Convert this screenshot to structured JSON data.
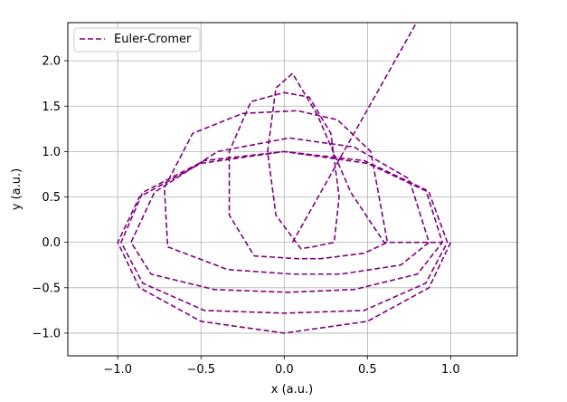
{
  "chart_data": {
    "type": "line",
    "title": "",
    "xlabel": "x (a.u.)",
    "ylabel": "y (a.u.)",
    "xlim": [
      -1.3,
      1.4
    ],
    "ylim": [
      -1.25,
      2.42
    ],
    "xticks": [
      -1.0,
      -0.5,
      0.0,
      0.5,
      1.0
    ],
    "xtick_labels": [
      "−1.0",
      "−0.5",
      "0.0",
      "0.5",
      "1.0"
    ],
    "yticks": [
      -1.0,
      -0.5,
      0.0,
      0.5,
      1.0,
      1.5,
      2.0
    ],
    "ytick_labels": [
      "−1.0",
      "−0.5",
      "0.0",
      "0.5",
      "1.0",
      "1.5",
      "2.0"
    ],
    "grid": true,
    "legend_position": "upper-left",
    "series": [
      {
        "name": "Euler-Cromer",
        "color": "#800080",
        "linestyle": "dashed",
        "x": [
          1.0,
          0.87,
          0.5,
          0.0,
          -0.5,
          -0.87,
          -1.0,
          -0.87,
          -0.5,
          0.0,
          0.5,
          0.87,
          0.98,
          0.85,
          0.48,
          0.0,
          -0.48,
          -0.85,
          -0.98,
          -0.85,
          -0.48,
          0.0,
          0.48,
          0.85,
          0.95,
          0.8,
          0.42,
          0.02,
          -0.42,
          -0.8,
          -0.92,
          -0.78,
          -0.4,
          0.03,
          0.42,
          0.75,
          0.87,
          0.7,
          0.34,
          0.05,
          -0.34,
          -0.7,
          -0.72,
          -0.55,
          -0.25,
          0.08,
          0.32,
          0.52,
          0.62,
          0.48,
          0.22,
          0.08,
          -0.18,
          -0.33,
          -0.33,
          -0.2,
          0.0,
          0.15,
          0.28,
          0.33,
          0.3,
          0.17,
          0.1,
          -0.05,
          -0.1,
          -0.05,
          0.05,
          0.2,
          0.4,
          0.6,
          0.8,
          0.95
        ],
        "y": [
          0.0,
          -0.5,
          -0.87,
          -1.0,
          -0.87,
          -0.5,
          0.0,
          0.5,
          0.87,
          1.0,
          0.87,
          0.55,
          0.0,
          -0.45,
          -0.75,
          -0.78,
          -0.75,
          -0.45,
          0.0,
          0.55,
          0.9,
          1.0,
          0.9,
          0.58,
          0.0,
          -0.35,
          -0.52,
          -0.55,
          -0.52,
          -0.35,
          0.0,
          0.55,
          1.0,
          1.15,
          1.05,
          0.7,
          0.0,
          -0.25,
          -0.35,
          -0.35,
          -0.3,
          -0.05,
          0.6,
          1.2,
          1.42,
          1.45,
          1.35,
          1.0,
          0.0,
          -0.12,
          -0.18,
          -0.18,
          -0.15,
          0.3,
          1.0,
          1.55,
          1.65,
          1.6,
          1.2,
          0.5,
          0.0,
          -0.05,
          -0.07,
          0.3,
          1.0,
          1.7,
          1.86,
          1.4,
          0.55,
          0.0,
          0.0,
          0.0
        ]
      }
    ]
  }
}
